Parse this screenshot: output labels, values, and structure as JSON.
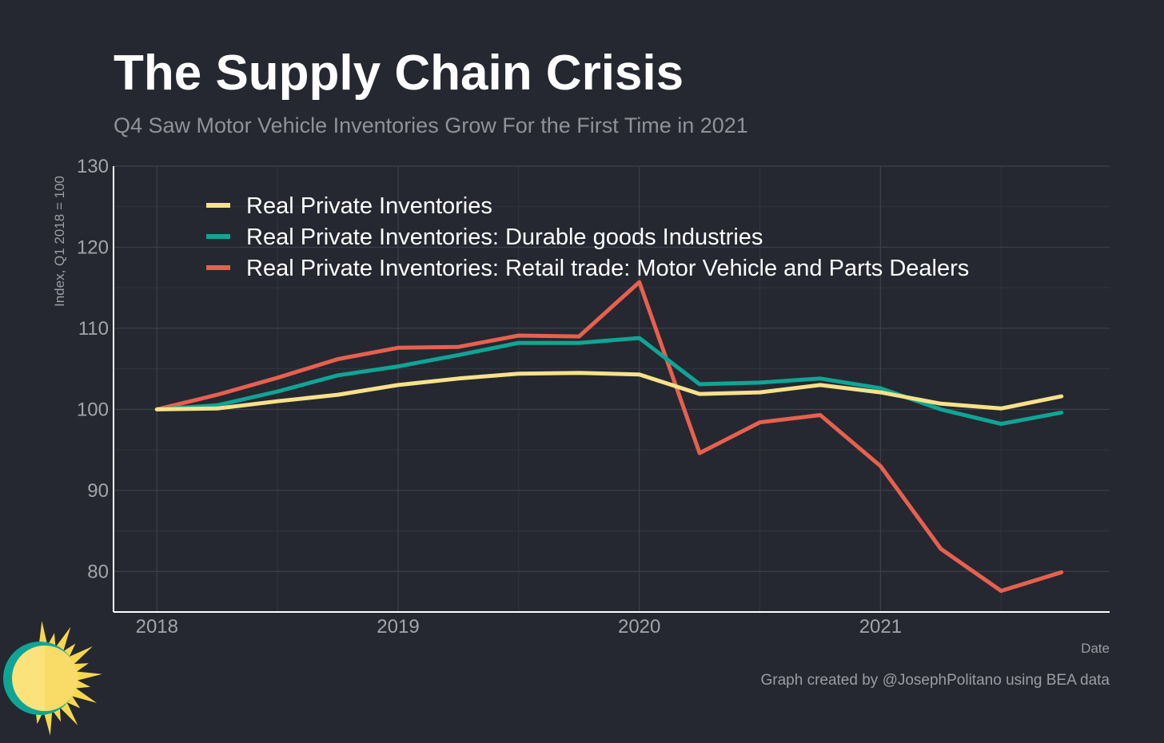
{
  "header": {
    "title": "The Supply Chain Crisis",
    "subtitle": "Q4 Saw Motor Vehicle Inventories Grow For the First Time in 2021"
  },
  "footer": {
    "caption": "Graph created by @JosephPolitano using BEA data"
  },
  "colors": {
    "background": "#252830",
    "grid": "#3d4049",
    "axis": "#ffffff",
    "series_total": "#f7e18a",
    "series_durable": "#0fa596",
    "series_motor": "#e8604f"
  },
  "logo_icon": "sun-icon",
  "chart_data": {
    "type": "line",
    "title": "The Supply Chain Crisis",
    "subtitle": "Q4 Saw Motor Vehicle Inventories Grow For the First Time in 2021",
    "xlabel": "Date",
    "ylabel": "Index, Q1 2018 = 100",
    "xlim": [
      2017.82,
      2021.95
    ],
    "ylim": [
      75,
      130
    ],
    "x_ticks": [
      2018,
      2019,
      2020,
      2021
    ],
    "x_tick_labels": [
      "2018",
      "2019",
      "2020",
      "2021"
    ],
    "y_ticks": [
      80,
      90,
      100,
      110,
      120,
      130
    ],
    "y_tick_labels": [
      "80",
      "90",
      "100",
      "110",
      "120",
      "130"
    ],
    "grid": true,
    "legend_position": "top-left",
    "x": [
      2018.0,
      2018.25,
      2018.5,
      2018.75,
      2019.0,
      2019.25,
      2019.5,
      2019.75,
      2020.0,
      2020.25,
      2020.5,
      2020.75,
      2021.0,
      2021.25,
      2021.5,
      2021.75
    ],
    "series": [
      {
        "name": "Real Private Inventories",
        "color": "#f7e18a",
        "values": [
          100.0,
          100.1,
          101.0,
          101.8,
          103.0,
          103.8,
          104.4,
          104.5,
          104.3,
          101.9,
          102.1,
          103.0,
          102.1,
          100.7,
          100.1,
          101.6
        ]
      },
      {
        "name": "Real Private Inventories: Durable goods Industries",
        "color": "#0fa596",
        "values": [
          100.0,
          100.5,
          102.2,
          104.2,
          105.3,
          106.7,
          108.2,
          108.2,
          108.8,
          103.1,
          103.3,
          103.8,
          102.6,
          100.0,
          98.2,
          99.6
        ]
      },
      {
        "name": "Real Private Inventories: Retail trade: Motor Vehicle and Parts Dealers",
        "color": "#e8604f",
        "values": [
          100.0,
          101.8,
          103.9,
          106.2,
          107.6,
          107.7,
          109.1,
          109.0,
          115.7,
          94.6,
          98.4,
          99.3,
          93.0,
          82.8,
          77.6,
          79.9
        ]
      }
    ]
  }
}
